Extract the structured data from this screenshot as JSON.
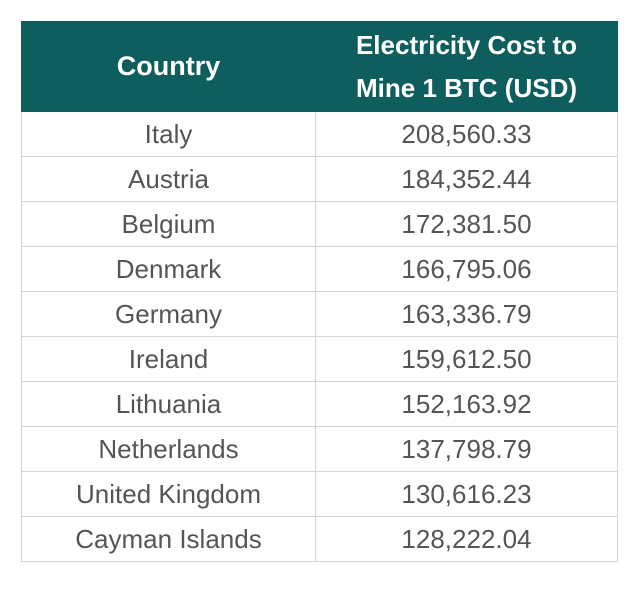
{
  "chart_data": {
    "type": "table",
    "columns": [
      "Country",
      "Electricity Cost to Mine 1 BTC (USD)"
    ],
    "rows": [
      [
        "Italy",
        "208,560.33"
      ],
      [
        "Austria",
        "184,352.44"
      ],
      [
        "Belgium",
        "172,381.50"
      ],
      [
        "Denmark",
        "166,795.06"
      ],
      [
        "Germany",
        "163,336.79"
      ],
      [
        "Ireland",
        "159,612.50"
      ],
      [
        "Lithuania",
        "152,163.92"
      ],
      [
        "Netherlands",
        "137,798.79"
      ],
      [
        "United Kingdom",
        "130,616.23"
      ],
      [
        "Cayman Islands",
        "128,222.04"
      ]
    ],
    "header_color": "#0f5e5e"
  }
}
